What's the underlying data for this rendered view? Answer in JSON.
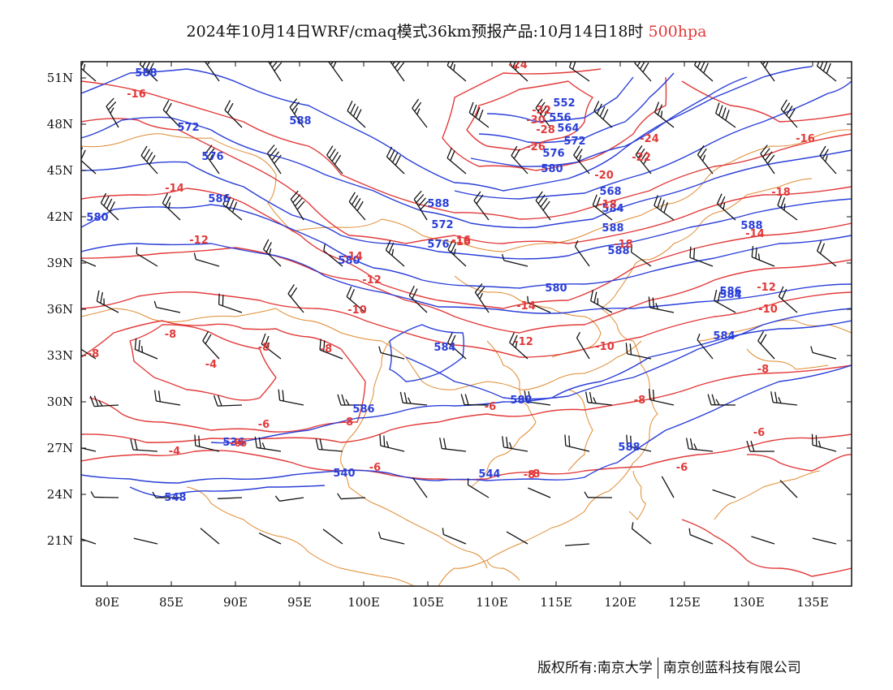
{
  "title": {
    "prefix": "2024年10月14日WRF/cmaq模式36km预报产品:10月14日18时",
    "level": "500hpa"
  },
  "axes": {
    "lat_labels": [
      "51N",
      "48N",
      "45N",
      "42N",
      "39N",
      "36N",
      "33N",
      "30N",
      "27N",
      "24N",
      "21N"
    ],
    "lon_labels": [
      "80E",
      "85E",
      "90E",
      "95E",
      "100E",
      "105E",
      "110E",
      "115E",
      "120E",
      "125E",
      "130E",
      "135E"
    ]
  },
  "contours": {
    "height_color": "#2a3fd8",
    "temp_color": "#e23a3a",
    "border_color": "#e08a30",
    "height_labels": [
      "588",
      "572",
      "576",
      "580",
      "586",
      "588",
      "572",
      "580",
      "576",
      "588",
      "580",
      "584",
      "584",
      "584",
      "588",
      "586",
      "588",
      "536",
      "540",
      "544",
      "548",
      "552",
      "556",
      "564",
      "572",
      "576",
      "580",
      "568",
      "584",
      "588",
      "588",
      "586",
      "588"
    ],
    "temp_labels": [
      "-16",
      "-14",
      "-12",
      "-14",
      "-12",
      "-10",
      "-8",
      "-8",
      "-4",
      "-8",
      "-8",
      "-6",
      "-8",
      "-6",
      "-4",
      "-6",
      "-6",
      "-8",
      "-8",
      "-14",
      "-12",
      "-10",
      "-16",
      "-18",
      "-18",
      "-20",
      "-22",
      "-24",
      "-26",
      "-28",
      "-30",
      "-32",
      "-24",
      "-16",
      "-18",
      "-14",
      "-12",
      "-10",
      "-8",
      "-6",
      "-6",
      "-16",
      "-8",
      "-6"
    ]
  },
  "footer": {
    "left": "版权所有:南京大学",
    "right": "南京创蓝科技有限公司"
  }
}
